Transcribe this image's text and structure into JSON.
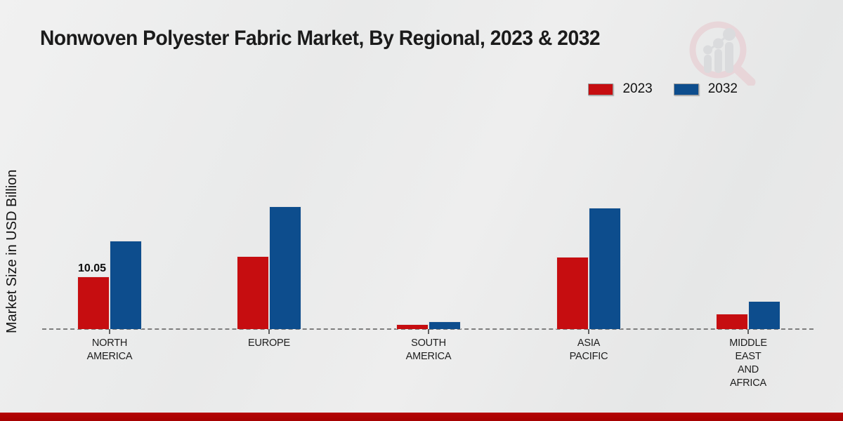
{
  "title": "Nonwoven Polyester Fabric Market, By Regional, 2023 & 2032",
  "ylabel": "Market Size in USD Billion",
  "legend": {
    "items": [
      {
        "label": "2023",
        "color": "#c60d10"
      },
      {
        "label": "2032",
        "color": "#0d4d8d"
      }
    ]
  },
  "footer": {
    "accent_color": "#b50404"
  },
  "watermark": {
    "name": "magnifier-bar-chart-logo"
  },
  "chart_data": {
    "type": "bar",
    "title": "Nonwoven Polyester Fabric Market, By Regional, 2023 & 2032",
    "ylabel": "Market Size in USD Billion",
    "unit": "USD Billion",
    "categories": [
      "NORTH AMERICA",
      "EUROPE",
      "SOUTH AMERICA",
      "ASIA PACIFIC",
      "MIDDLE EAST AND AFRICA"
    ],
    "category_lines": [
      [
        "NORTH",
        "AMERICA"
      ],
      [
        "EUROPE"
      ],
      [
        "SOUTH",
        "AMERICA"
      ],
      [
        "ASIA",
        "PACIFIC"
      ],
      [
        "MIDDLE",
        "EAST",
        "AND",
        "AFRICA"
      ]
    ],
    "series": [
      {
        "name": "2023",
        "color": "#c60d10",
        "values": [
          10.05,
          13.9,
          0.9,
          13.8,
          2.9
        ]
      },
      {
        "name": "2032",
        "color": "#0d4d8d",
        "values": [
          16.9,
          23.4,
          1.5,
          23.2,
          5.4
        ]
      }
    ],
    "data_labels": [
      {
        "series": "2023",
        "category": "NORTH AMERICA",
        "text": "10.05"
      }
    ],
    "ylim": [
      0,
      25
    ],
    "grid": false,
    "legend_position": "top-right",
    "baseline_style": "dashed"
  }
}
